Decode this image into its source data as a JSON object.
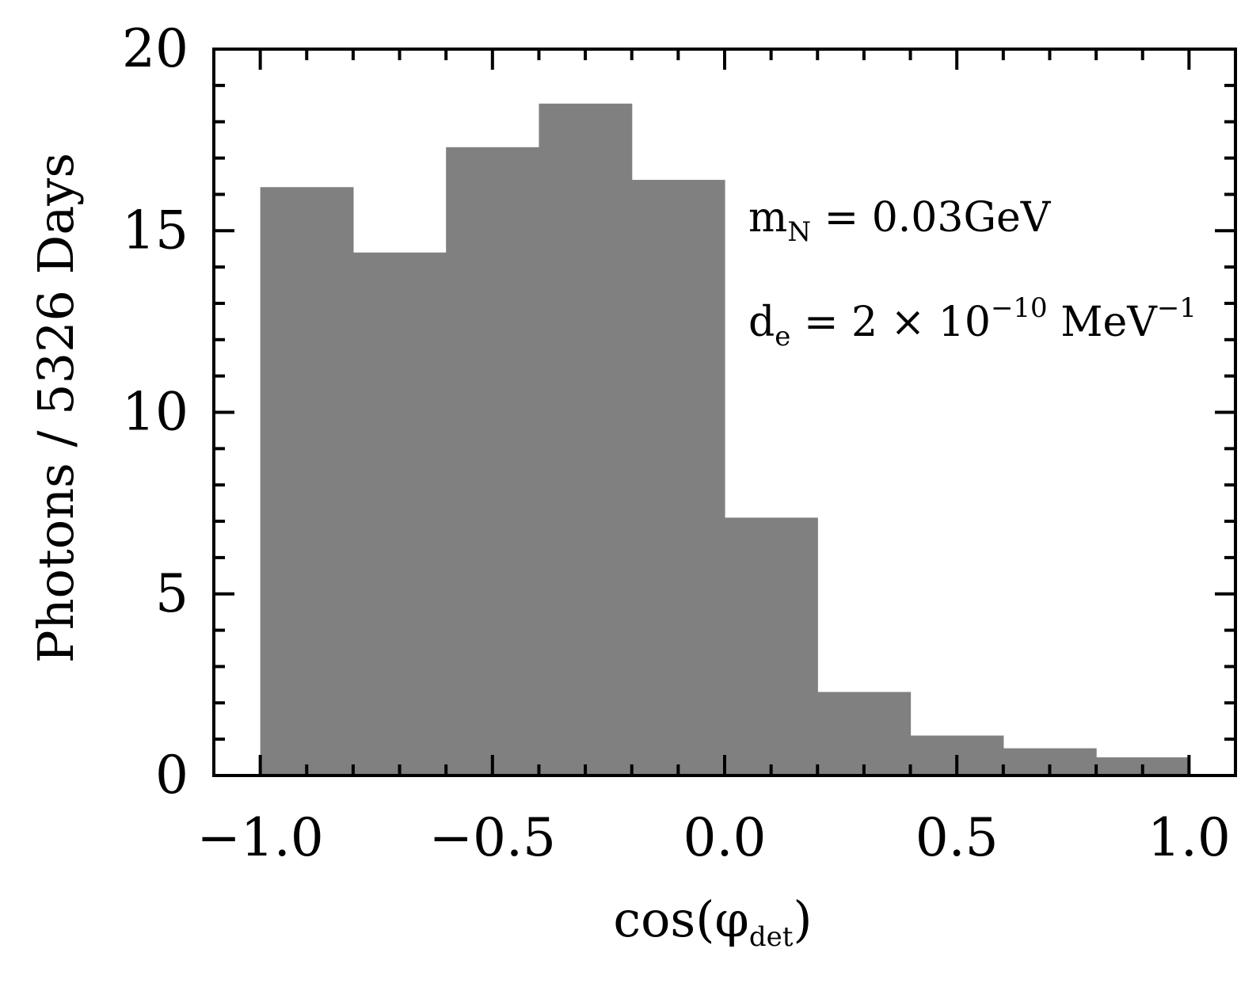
{
  "chart_data": {
    "type": "bar",
    "histogram": true,
    "bin_edges": [
      -1.0,
      -0.8,
      -0.6,
      -0.4,
      -0.2,
      0.0,
      0.2,
      0.4,
      0.6,
      0.8,
      1.0
    ],
    "values": [
      16.2,
      14.4,
      17.3,
      18.5,
      16.4,
      7.1,
      2.3,
      1.1,
      0.75,
      0.5
    ],
    "bar_color": "#808080",
    "xlabel": "cos(φ",
    "xlabel_sub": "det",
    "xlabel_close": ")",
    "ylabel": "Photons / 5326 Days",
    "xlim": [
      -1.1,
      1.1
    ],
    "ylim": [
      0,
      20
    ],
    "x_ticks": [
      -1.0,
      -0.5,
      0.0,
      0.5,
      1.0
    ],
    "x_tick_labels": [
      "−1.0",
      "−0.5",
      "0.0",
      "0.5",
      "1.0"
    ],
    "x_minor_ticks": [
      -0.9,
      -0.8,
      -0.7,
      -0.6,
      -0.4,
      -0.3,
      -0.2,
      -0.1,
      0.1,
      0.2,
      0.3,
      0.4,
      0.6,
      0.7,
      0.8,
      0.9
    ],
    "y_ticks": [
      0,
      5,
      10,
      15,
      20
    ],
    "y_tick_labels": [
      "0",
      "5",
      "10",
      "15",
      "20"
    ],
    "y_minor_ticks": [
      1,
      2,
      3,
      4,
      6,
      7,
      8,
      9,
      11,
      12,
      13,
      14,
      16,
      17,
      18,
      19
    ],
    "grid": false,
    "annotations": {
      "mass": {
        "base": "m",
        "sub": "N",
        "rest": " = 0.03GeV"
      },
      "coupling": {
        "base": "d",
        "sub": "e",
        "mid": " = 2 × 10",
        "sup": "−10",
        "unit": " MeV",
        "unit_sup": "−1"
      }
    }
  }
}
